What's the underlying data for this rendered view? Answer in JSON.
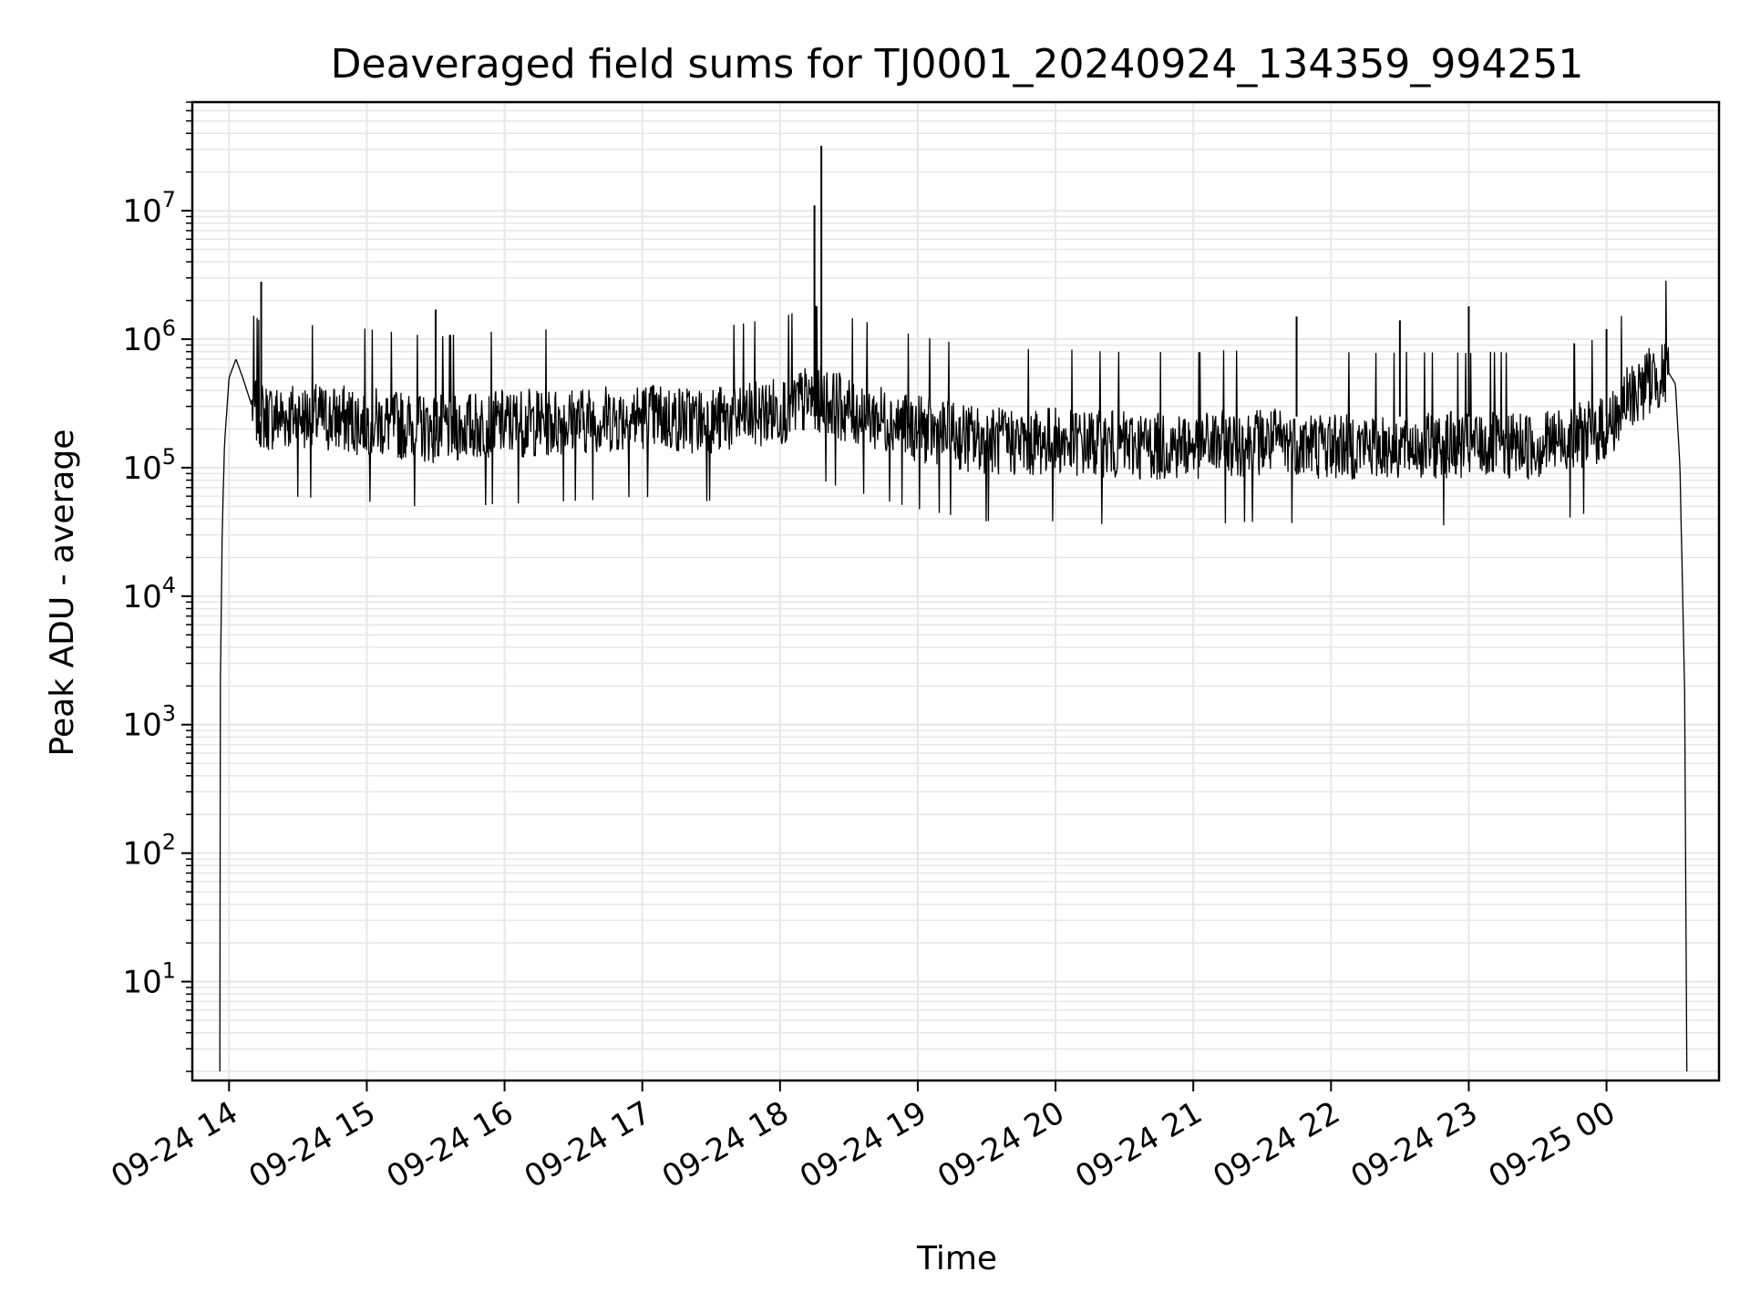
{
  "chart_data": {
    "type": "line",
    "title": "Deaveraged field sums for TJ0001_20240924_134359_994251",
    "xlabel": "Time",
    "ylabel": "Peak ADU - average",
    "yscale": "log",
    "ylim": [
      1.7,
      70000000
    ],
    "xlim": [
      "2024-09-24 13:44",
      "2024-09-25 00:49"
    ],
    "grid": true,
    "line_color": "#000000",
    "grid_color": "#e6e6e6",
    "x_ticks": [
      "2024-09-24 14:00",
      "2024-09-24 15:00",
      "2024-09-24 16:00",
      "2024-09-24 17:00",
      "2024-09-24 18:00",
      "2024-09-24 19:00",
      "2024-09-24 20:00",
      "2024-09-24 21:00",
      "2024-09-24 22:00",
      "2024-09-24 23:00",
      "2024-09-25 00:00"
    ],
    "x_tick_labels": [
      "09-24 14",
      "09-24 15",
      "09-24 16",
      "09-24 17",
      "09-24 18",
      "09-24 19",
      "09-24 20",
      "09-24 21",
      "09-24 22",
      "09-24 23",
      "09-25 00"
    ],
    "y_ticks": [
      10,
      100,
      1000,
      10000,
      100000,
      1000000,
      10000000
    ],
    "y_tick_base": "10",
    "y_tick_exponents": [
      "1",
      "2",
      "3",
      "4",
      "5",
      "6",
      "7"
    ],
    "series": [
      {
        "x": [
          "2024-09-24 13:56",
          "2024-09-24 13:56",
          "2024-09-24 13:57",
          "2024-09-24 13:58",
          "2024-09-24 14:00",
          "2024-09-24 14:03",
          "2024-09-24 14:06",
          "2024-09-24 14:10",
          "2024-09-24 14:15",
          "2024-09-24 14:30",
          "2024-09-24 15:00",
          "2024-09-24 15:30",
          "2024-09-24 16:00",
          "2024-09-24 16:30",
          "2024-09-24 17:00",
          "2024-09-24 17:30",
          "2024-09-24 18:00",
          "2024-09-24 18:15",
          "2024-09-24 18:30",
          "2024-09-24 19:00",
          "2024-09-24 19:30",
          "2024-09-24 20:00",
          "2024-09-24 20:30",
          "2024-09-24 21:00",
          "2024-09-24 21:30",
          "2024-09-24 22:00",
          "2024-09-24 22:30",
          "2024-09-24 23:00",
          "2024-09-24 23:30",
          "2024-09-25 00:00",
          "2024-09-25 00:10",
          "2024-09-25 00:20",
          "2024-09-25 00:27",
          "2024-09-25 00:30",
          "2024-09-25 00:32",
          "2024-09-25 00:34",
          "2024-09-25 00:35"
        ],
        "y": [
          2,
          1000,
          30000,
          150000,
          500000,
          700000,
          500000,
          300000,
          250000,
          250000,
          230000,
          200000,
          220000,
          230000,
          250000,
          230000,
          280000,
          350000,
          280000,
          200000,
          160000,
          160000,
          150000,
          150000,
          160000,
          150000,
          150000,
          150000,
          150000,
          200000,
          350000,
          500000,
          550000,
          450000,
          100000,
          2000,
          2
        ]
      }
    ],
    "spikes": [
      {
        "x": "2024-09-24 14:14",
        "y": 2800000
      },
      {
        "x": "2024-09-24 15:30",
        "y": 1700000
      },
      {
        "x": "2024-09-24 18:15",
        "y": 11000000
      },
      {
        "x": "2024-09-24 18:18",
        "y": 32000000
      },
      {
        "x": "2024-09-24 21:45",
        "y": 1500000
      },
      {
        "x": "2024-09-24 22:30",
        "y": 1400000
      },
      {
        "x": "2024-09-24 23:00",
        "y": 1800000
      },
      {
        "x": "2024-09-25 00:00",
        "y": 1200000
      }
    ]
  }
}
